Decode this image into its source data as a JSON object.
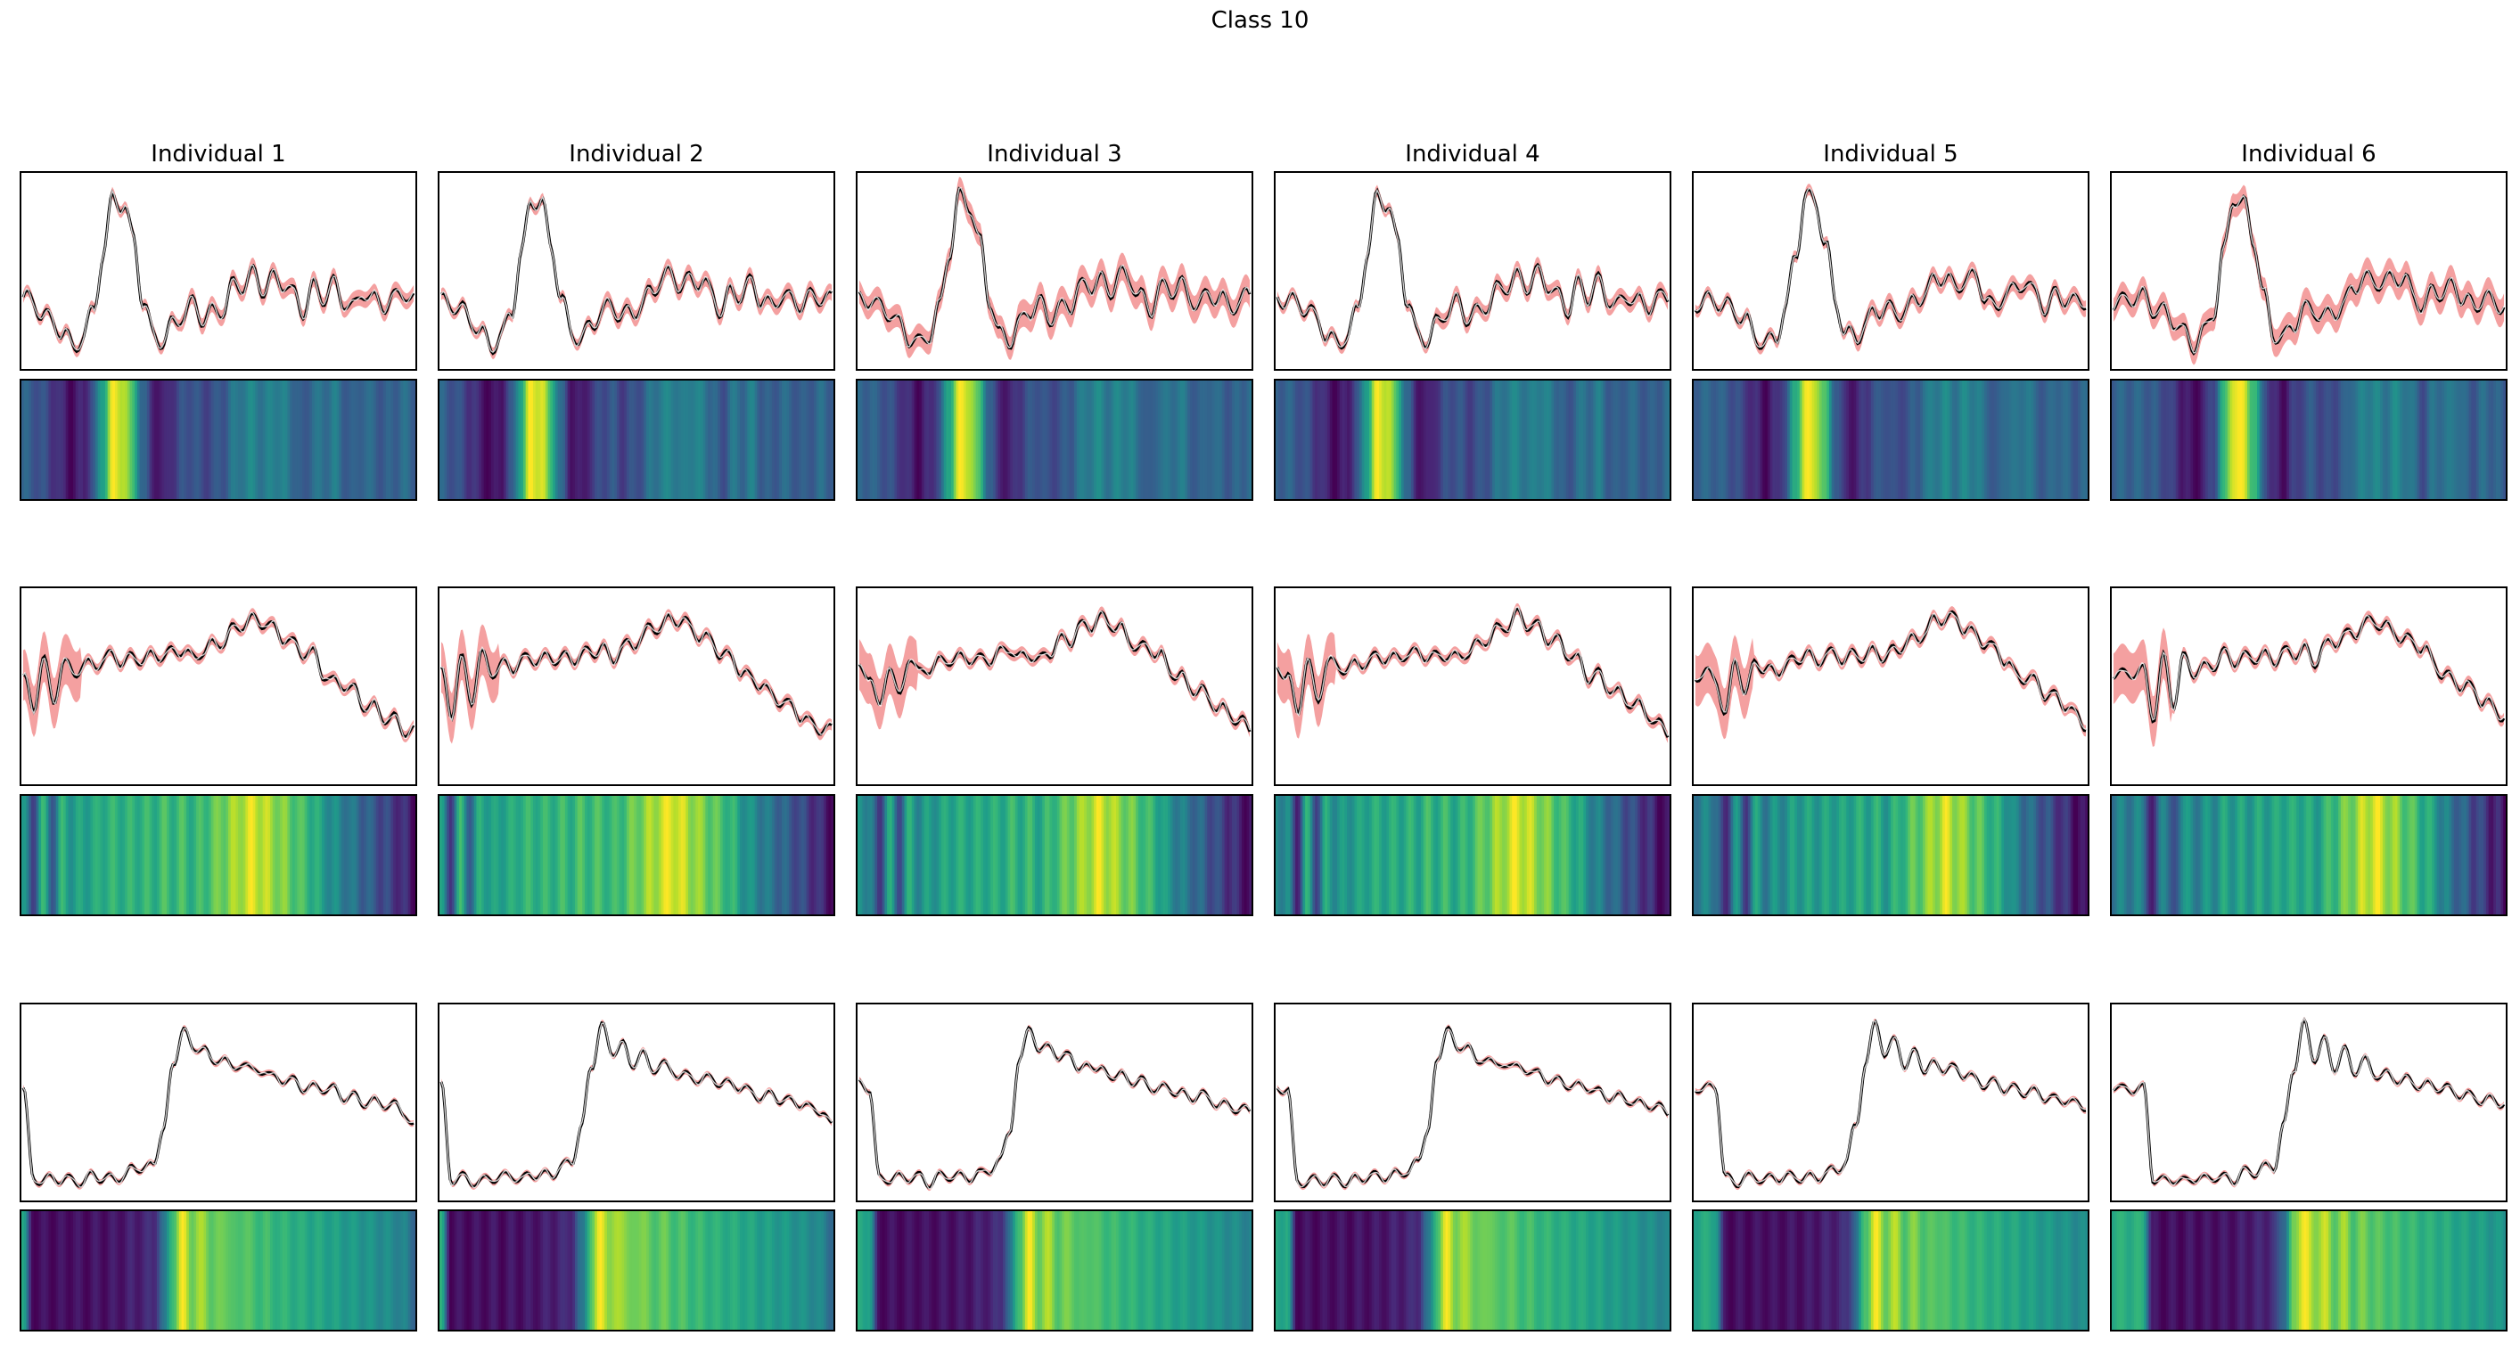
{
  "figure": {
    "title": "Class 10"
  },
  "columns": [
    "Individual 1",
    "Individual 2",
    "Individual 3",
    "Individual 4",
    "Individual 5",
    "Individual 6"
  ],
  "colors": {
    "mean_line": "#000000",
    "individual_line": "#ffffff",
    "band": "#f08080",
    "heatmap_colormap": "viridis"
  },
  "chart_data": [
    {
      "type": "line",
      "row": 1,
      "description_labels": "",
      "panels": 6,
      "series": [
        {
          "name": "",
          "values": [
            0.0,
            -0.05,
            -0.1,
            -0.2,
            -0.3,
            -0.4,
            -0.3,
            -0.1,
            0.4,
            0.9,
            0.85,
            0.5,
            0.0,
            -0.3,
            -0.35,
            -0.2,
            -0.1,
            -0.05,
            -0.15,
            -0.1,
            -0.05,
            0.1,
            0.15,
            0.2,
            0.1,
            0.2,
            0.15,
            0.05,
            -0.1,
            0.1,
            0.05,
            0.15,
            0.0,
            -0.05,
            0.05,
            0.0,
            -0.05,
            0.0,
            0.05,
            0.0
          ]
        }
      ],
      "xlim": [
        0,
        39
      ],
      "ylim": [
        -0.6,
        1.1
      ],
      "grid": false,
      "ticks": false
    },
    {
      "type": "heatmap",
      "row": 1,
      "panels": 6,
      "colormap": "viridis",
      "ticks": false
    },
    {
      "type": "line",
      "row": 2,
      "panels": 6,
      "series": [
        {
          "name": "",
          "values": [
            0.0,
            -0.3,
            0.1,
            -0.2,
            0.1,
            0.0,
            0.05,
            0.05,
            0.1,
            0.1,
            0.1,
            0.1,
            0.12,
            0.1,
            0.15,
            0.12,
            0.15,
            0.1,
            0.15,
            0.2,
            0.25,
            0.3,
            0.35,
            0.4,
            0.35,
            0.3,
            0.25,
            0.2,
            0.15,
            0.1,
            0.0,
            -0.05,
            -0.1,
            -0.15,
            -0.2,
            -0.25,
            -0.3,
            -0.35,
            -0.4,
            -0.45
          ]
        }
      ],
      "xlim": [
        0,
        39
      ],
      "ylim": [
        -0.8,
        0.6
      ],
      "grid": false,
      "ticks": false
    },
    {
      "type": "heatmap",
      "row": 2,
      "panels": 6,
      "colormap": "viridis",
      "ticks": false
    },
    {
      "type": "line",
      "row": 3,
      "panels": 6,
      "series": [
        {
          "name": "",
          "values": [
            0.3,
            -0.6,
            -0.6,
            -0.6,
            -0.6,
            -0.58,
            -0.6,
            -0.58,
            -0.58,
            -0.57,
            -0.55,
            -0.52,
            -0.5,
            -0.45,
            -0.1,
            0.5,
            0.9,
            0.6,
            0.75,
            0.5,
            0.65,
            0.45,
            0.55,
            0.45,
            0.45,
            0.4,
            0.38,
            0.35,
            0.32,
            0.3,
            0.28,
            0.25,
            0.22,
            0.2,
            0.18,
            0.15,
            0.12,
            0.1,
            0.05,
            -0.1
          ]
        }
      ],
      "xlim": [
        0,
        39
      ],
      "ylim": [
        -0.8,
        1.1
      ],
      "grid": false,
      "ticks": false
    },
    {
      "type": "heatmap",
      "row": 3,
      "panels": 6,
      "colormap": "viridis",
      "ticks": false
    }
  ]
}
